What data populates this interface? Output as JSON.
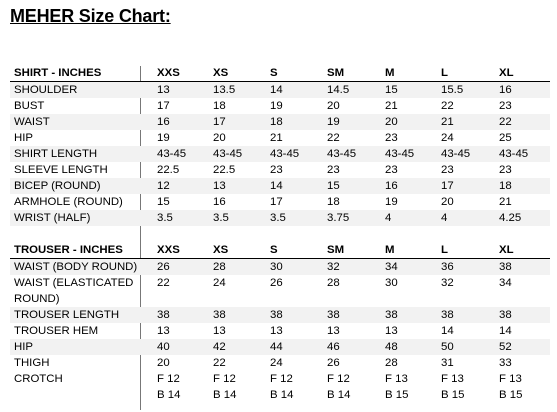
{
  "title": "MEHER Size Chart:",
  "shirt": {
    "header": [
      "SHIRT - INCHES",
      "XXS",
      "XS",
      "S",
      "SM",
      "M",
      "L",
      "XL"
    ],
    "rows": [
      [
        "SHOULDER",
        "13",
        "13.5",
        "14",
        "14.5",
        "15",
        "15.5",
        "16"
      ],
      [
        "BUST",
        "17",
        "18",
        "19",
        "20",
        "21",
        "22",
        "23"
      ],
      [
        "WAIST",
        "16",
        "17",
        "18",
        "19",
        "20",
        "21",
        "22"
      ],
      [
        "HIP",
        "19",
        "20",
        "21",
        "22",
        "23",
        "24",
        "25"
      ],
      [
        "SHIRT LENGTH",
        "43-45",
        "43-45",
        "43-45",
        "43-45",
        "43-45",
        "43-45",
        "43-45"
      ],
      [
        "SLEEVE LENGTH",
        "22.5",
        "22.5",
        "23",
        "23",
        "23",
        "23",
        "23"
      ],
      [
        "BICEP (ROUND)",
        "12",
        "13",
        "14",
        "15",
        "16",
        "17",
        "18"
      ],
      [
        "ARMHOLE (ROUND)",
        "15",
        "16",
        "17",
        "18",
        "19",
        "20",
        "21"
      ],
      [
        "WRIST (HALF)",
        "3.5",
        "3.5",
        "3.5",
        "3.75",
        "4",
        "4",
        "4.25"
      ]
    ]
  },
  "trouser": {
    "header": [
      "TROUSER - INCHES",
      "XXS",
      "XS",
      "S",
      "SM",
      "M",
      "L",
      "XL"
    ],
    "rows": [
      [
        "WAIST (BODY ROUND)",
        "26",
        "28",
        "30",
        "32",
        "34",
        "36",
        "38"
      ],
      [
        "WAIST (ELASTICATED ROUND)",
        "22",
        "24",
        "26",
        "28",
        "30",
        "32",
        "34"
      ],
      [
        "TROUSER LENGTH",
        "38",
        "38",
        "38",
        "38",
        "38",
        "38",
        "38"
      ],
      [
        "TROUSER HEM",
        "13",
        "13",
        "13",
        "13",
        "13",
        "14",
        "14"
      ],
      [
        "HIP",
        "40",
        "42",
        "44",
        "46",
        "48",
        "50",
        "52"
      ],
      [
        "THIGH",
        "20",
        "22",
        "24",
        "26",
        "28",
        "31",
        "33"
      ]
    ],
    "crotch": {
      "label": "CROTCH",
      "f": [
        "F 12",
        "F 12",
        "F 12",
        "F 12",
        "F 13",
        "F 13",
        "F 13"
      ],
      "b": [
        "B 14",
        "B 14",
        "B 14",
        "B 14",
        "B 15",
        "B 15",
        "B 15"
      ]
    }
  },
  "colors": {
    "shade": "#f2f2f2",
    "divider": "#777777"
  }
}
